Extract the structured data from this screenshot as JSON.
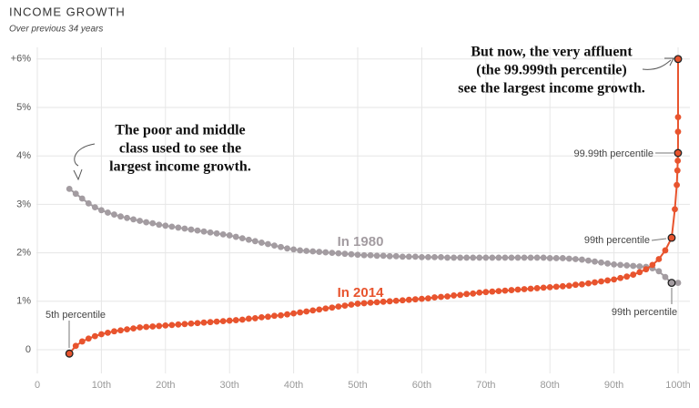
{
  "chart_data": {
    "type": "line",
    "title": "INCOME GROWTH",
    "subtitle": "Over previous 34 years",
    "xlim": [
      0,
      100
    ],
    "xticks": [
      0,
      {
        "value": 10,
        "label": "10th"
      },
      {
        "value": 20,
        "label": "20th"
      },
      {
        "value": 30,
        "label": "30th"
      },
      {
        "value": 40,
        "label": "40th"
      },
      {
        "value": 50,
        "label": "50th"
      },
      {
        "value": 60,
        "label": "60th"
      },
      {
        "value": 70,
        "label": "70th"
      },
      {
        "value": 80,
        "label": "80th"
      },
      {
        "value": 90,
        "label": "90th"
      },
      {
        "value": 100,
        "label": "100th"
      }
    ],
    "ylim": [
      -0.5,
      6.2
    ],
    "yticks": [
      0,
      {
        "value": 1,
        "label": "1%"
      },
      {
        "value": 2,
        "label": "2%"
      },
      {
        "value": 3,
        "label": "3%"
      },
      {
        "value": 4,
        "label": "4%"
      },
      {
        "value": 5,
        "label": "5%"
      },
      {
        "value": 6,
        "label": "+6%"
      }
    ],
    "grid": true,
    "series": [
      {
        "name": "In 1980",
        "color": "#a39ca1",
        "x": [
          5,
          6,
          7,
          8,
          9,
          10,
          11,
          12,
          13,
          14,
          15,
          16,
          17,
          18,
          19,
          20,
          21,
          22,
          23,
          24,
          25,
          26,
          27,
          28,
          29,
          30,
          31,
          32,
          33,
          34,
          35,
          36,
          37,
          38,
          39,
          40,
          41,
          42,
          43,
          44,
          45,
          46,
          47,
          48,
          49,
          50,
          51,
          52,
          53,
          54,
          55,
          56,
          57,
          58,
          59,
          60,
          61,
          62,
          63,
          64,
          65,
          66,
          67,
          68,
          69,
          70,
          71,
          72,
          73,
          74,
          75,
          76,
          77,
          78,
          79,
          80,
          81,
          82,
          83,
          84,
          85,
          86,
          87,
          88,
          89,
          90,
          91,
          92,
          93,
          94,
          95,
          96,
          97,
          98,
          99,
          100
        ],
        "values": [
          3.32,
          3.22,
          3.12,
          3.02,
          2.94,
          2.88,
          2.83,
          2.79,
          2.75,
          2.72,
          2.69,
          2.66,
          2.63,
          2.61,
          2.58,
          2.56,
          2.54,
          2.52,
          2.5,
          2.48,
          2.46,
          2.44,
          2.42,
          2.4,
          2.38,
          2.36,
          2.33,
          2.3,
          2.27,
          2.24,
          2.21,
          2.18,
          2.15,
          2.12,
          2.09,
          2.07,
          2.05,
          2.04,
          2.03,
          2.02,
          2.01,
          2,
          1.99,
          1.98,
          1.97,
          1.96,
          1.95,
          1.95,
          1.94,
          1.94,
          1.93,
          1.93,
          1.92,
          1.92,
          1.92,
          1.91,
          1.91,
          1.91,
          1.91,
          1.9,
          1.9,
          1.9,
          1.9,
          1.9,
          1.9,
          1.9,
          1.9,
          1.9,
          1.9,
          1.9,
          1.9,
          1.9,
          1.9,
          1.9,
          1.9,
          1.89,
          1.89,
          1.89,
          1.88,
          1.87,
          1.86,
          1.84,
          1.82,
          1.8,
          1.78,
          1.76,
          1.75,
          1.74,
          1.73,
          1.72,
          1.71,
          1.68,
          1.62,
          1.5,
          1.38,
          1.38
        ]
      },
      {
        "name": "In 2014",
        "color": "#e8542e",
        "x": [
          5,
          6,
          7,
          8,
          9,
          10,
          11,
          12,
          13,
          14,
          15,
          16,
          17,
          18,
          19,
          20,
          21,
          22,
          23,
          24,
          25,
          26,
          27,
          28,
          29,
          30,
          31,
          32,
          33,
          34,
          35,
          36,
          37,
          38,
          39,
          40,
          41,
          42,
          43,
          44,
          45,
          46,
          47,
          48,
          49,
          50,
          51,
          52,
          53,
          54,
          55,
          56,
          57,
          58,
          59,
          60,
          61,
          62,
          63,
          64,
          65,
          66,
          67,
          68,
          69,
          70,
          71,
          72,
          73,
          74,
          75,
          76,
          77,
          78,
          79,
          80,
          81,
          82,
          83,
          84,
          85,
          86,
          87,
          88,
          89,
          90,
          91,
          92,
          93,
          94,
          95,
          96,
          97,
          98,
          99,
          99.5,
          99.8,
          99.9,
          99.95,
          99.99,
          99.995,
          99.998,
          99.999
        ],
        "values": [
          -0.08,
          0.08,
          0.17,
          0.23,
          0.28,
          0.32,
          0.35,
          0.38,
          0.4,
          0.42,
          0.44,
          0.46,
          0.47,
          0.48,
          0.49,
          0.5,
          0.51,
          0.52,
          0.53,
          0.54,
          0.55,
          0.56,
          0.57,
          0.58,
          0.59,
          0.6,
          0.61,
          0.62,
          0.64,
          0.65,
          0.67,
          0.68,
          0.7,
          0.71,
          0.73,
          0.75,
          0.77,
          0.79,
          0.81,
          0.83,
          0.85,
          0.87,
          0.89,
          0.91,
          0.93,
          0.95,
          0.96,
          0.97,
          0.98,
          0.99,
          1,
          1.01,
          1.02,
          1.03,
          1.04,
          1.05,
          1.06,
          1.08,
          1.09,
          1.1,
          1.12,
          1.13,
          1.15,
          1.16,
          1.18,
          1.19,
          1.2,
          1.21,
          1.22,
          1.23,
          1.24,
          1.25,
          1.26,
          1.27,
          1.28,
          1.29,
          1.3,
          1.31,
          1.32,
          1.34,
          1.35,
          1.37,
          1.39,
          1.41,
          1.43,
          1.45,
          1.48,
          1.51,
          1.55,
          1.6,
          1.66,
          1.75,
          1.87,
          2.05,
          2.31,
          2.9,
          3.4,
          3.7,
          3.9,
          4.06,
          4.5,
          4.8,
          6
        ]
      }
    ],
    "annotations": [
      {
        "text": [
          "The poor and middle",
          "class used to see the",
          "largest income growth."
        ]
      },
      {
        "text": [
          "But now, the very affluent",
          "(the 99.999th percentile)",
          "see the largest income growth."
        ]
      },
      {
        "text": [
          "5th percentile"
        ]
      },
      {
        "text": [
          "99th percentile"
        ]
      },
      {
        "text": [
          "99th percentile"
        ]
      },
      {
        "text": [
          "99.99th percentile"
        ]
      }
    ]
  }
}
